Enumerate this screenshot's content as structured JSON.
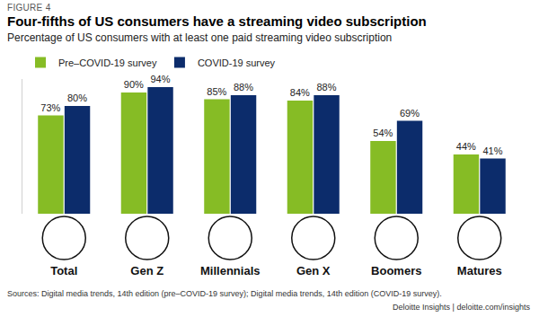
{
  "chart_data": {
    "type": "bar",
    "figure_label": "FIGURE 4",
    "title": "Four-fifths of US consumers have a streaming video subscription",
    "subtitle": "Percentage of US consumers with at least one paid streaming video subscription",
    "source": "Sources: Digital media trends, 14th edition (pre–COVID-19 survey); Digital media trends, 14th edition (COVID-19 survey).",
    "credit": "Deloitte Insights | deloitte.com/insights",
    "categories": [
      "Total",
      "Gen Z",
      "Millennials",
      "Gen X",
      "Boomers",
      "Matures"
    ],
    "series": [
      {
        "name": "Pre–COVID-19 survey",
        "color": "#86bc25",
        "values": [
          73,
          90,
          85,
          84,
          54,
          44
        ],
        "value_labels": [
          "73%",
          "90%",
          "85%",
          "84%",
          "54%",
          "44%"
        ]
      },
      {
        "name": "COVID-19 survey",
        "color": "#0c2c6b",
        "values": [
          80,
          94,
          88,
          88,
          69,
          41
        ],
        "value_labels": [
          "80%",
          "94%",
          "88%",
          "88%",
          "69%",
          "41%"
        ]
      }
    ],
    "ylim": [
      0,
      100
    ],
    "grid": false,
    "legend": "top left",
    "data_labels": true,
    "tick_labels": "x"
  }
}
